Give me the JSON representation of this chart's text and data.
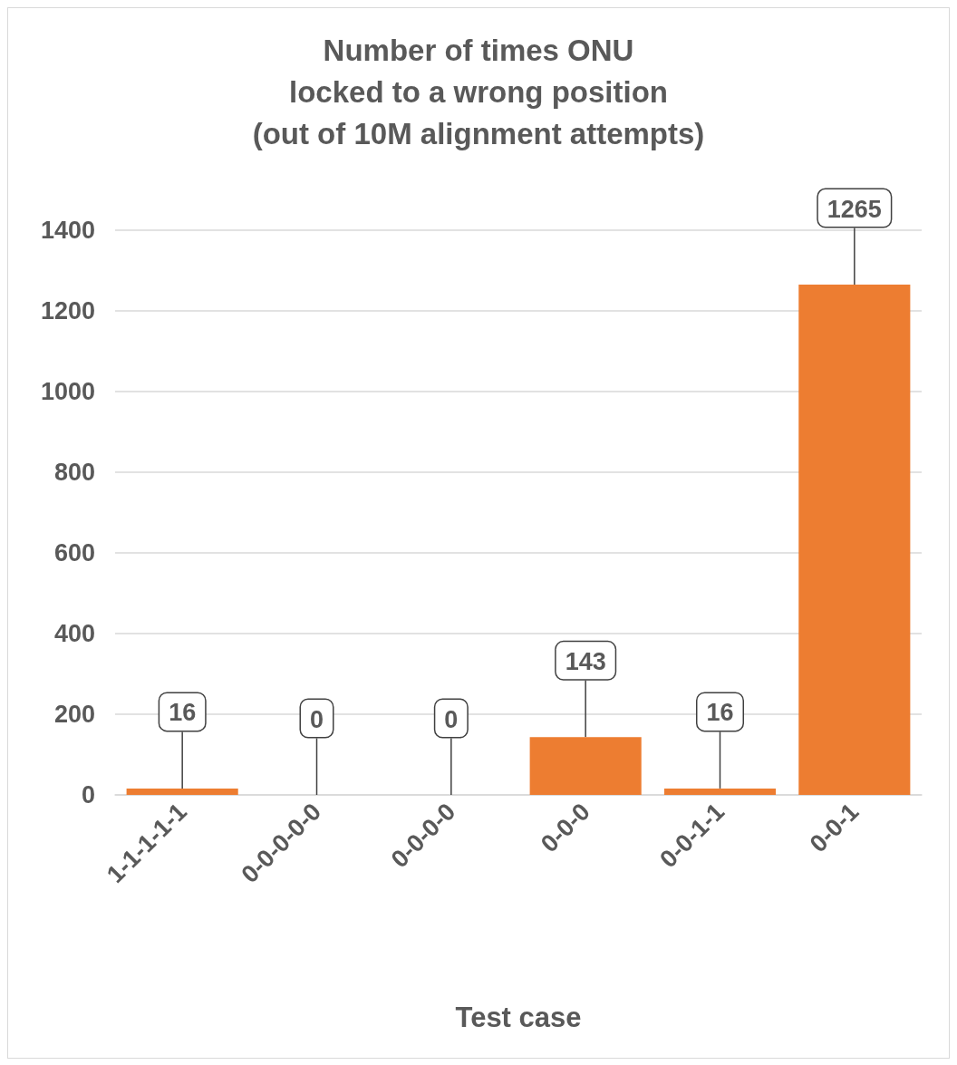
{
  "chart_data": {
    "type": "bar",
    "title": "Number of times ONU\nlocked to a wrong position\n(out of 10M alignment attempts)",
    "xlabel": "Test case",
    "categories": [
      "1-1-1-1-1",
      "0-0-0-0-0",
      "0-0-0-0",
      "0-0-0",
      "0-0-1-1",
      "0-0-1"
    ],
    "values": [
      16,
      0,
      0,
      143,
      16,
      1265
    ],
    "color": "#ed7d31",
    "ylim": [
      0,
      1400
    ],
    "yticks": [
      0,
      200,
      400,
      600,
      800,
      1000,
      1200,
      1400
    ],
    "grid": "y",
    "data_labels": true
  }
}
